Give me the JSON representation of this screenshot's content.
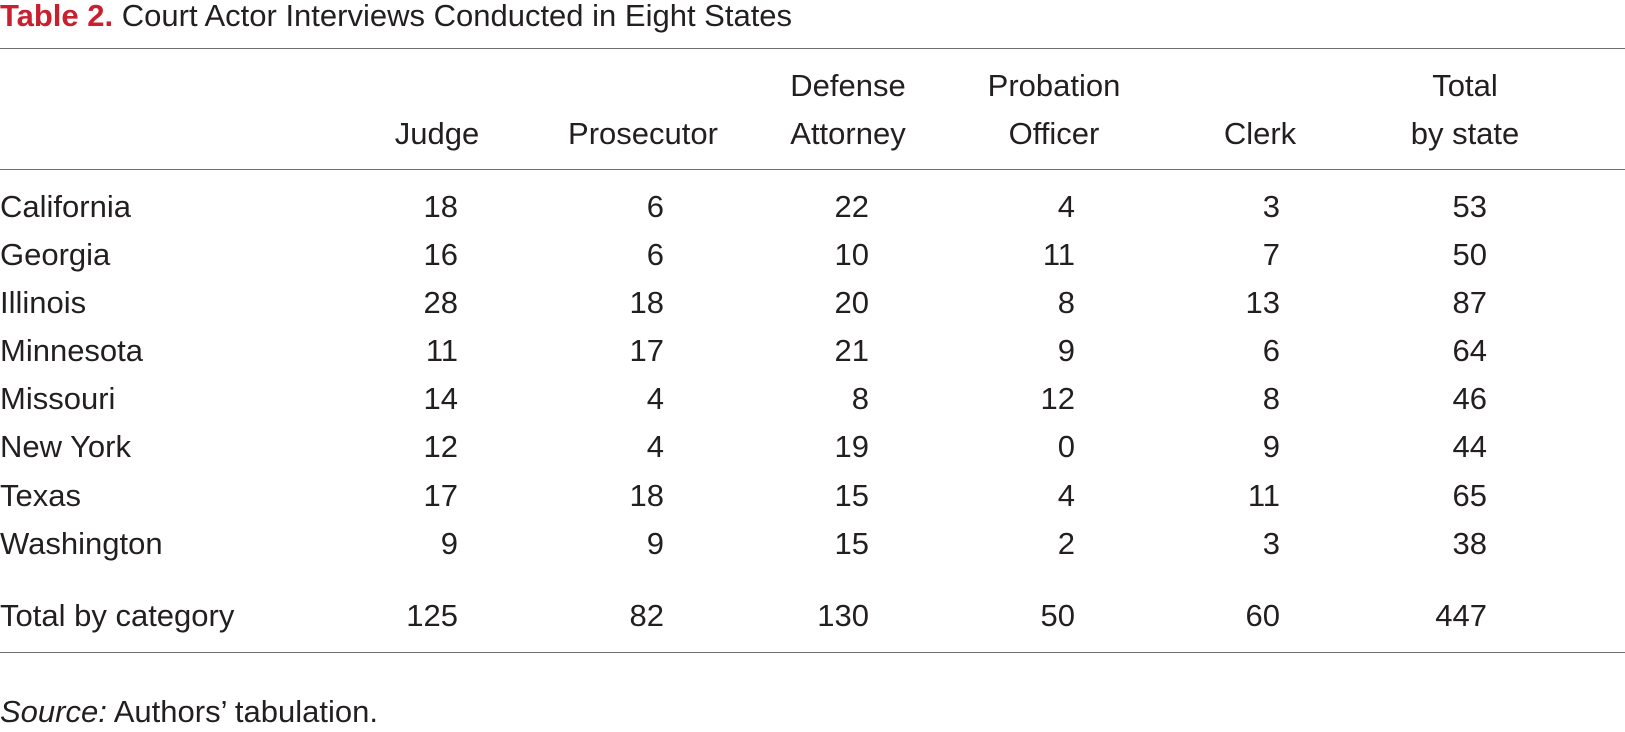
{
  "title": {
    "label": "Table 2.",
    "text": "Court Actor Interviews Conducted in Eight States"
  },
  "table": {
    "columns": [
      {
        "line1": "",
        "line2": "Judge"
      },
      {
        "line1": "",
        "line2": "Prosecutor"
      },
      {
        "line1": "Defense",
        "line2": "Attorney"
      },
      {
        "line1": "Probation",
        "line2": "Officer"
      },
      {
        "line1": "",
        "line2": "Clerk"
      },
      {
        "line1": "Total",
        "line2": "by state"
      }
    ],
    "rows": [
      {
        "state": "California",
        "values": [
          "18",
          "6",
          "22",
          "4",
          "3",
          "53"
        ]
      },
      {
        "state": "Georgia",
        "values": [
          "16",
          "6",
          "10",
          "11",
          "7",
          "50"
        ]
      },
      {
        "state": "Illinois",
        "values": [
          "28",
          "18",
          "20",
          "8",
          "13",
          "87"
        ]
      },
      {
        "state": "Minnesota",
        "values": [
          "11",
          "17",
          "21",
          "9",
          "6",
          "64"
        ]
      },
      {
        "state": "Missouri",
        "values": [
          "14",
          "4",
          "8",
          "12",
          "8",
          "46"
        ]
      },
      {
        "state": "New York",
        "values": [
          "12",
          "4",
          "19",
          "0",
          "9",
          "44"
        ]
      },
      {
        "state": "Texas",
        "values": [
          "17",
          "18",
          "15",
          "4",
          "11",
          "65"
        ]
      },
      {
        "state": "Washington",
        "values": [
          "9",
          "9",
          "15",
          "2",
          "3",
          "38"
        ]
      }
    ],
    "total_row": {
      "label": "Total by category",
      "values": [
        "125",
        "82",
        "130",
        "50",
        "60",
        "447"
      ]
    }
  },
  "source": {
    "label": "Source:",
    "text": "Authors’ tabulation."
  }
}
